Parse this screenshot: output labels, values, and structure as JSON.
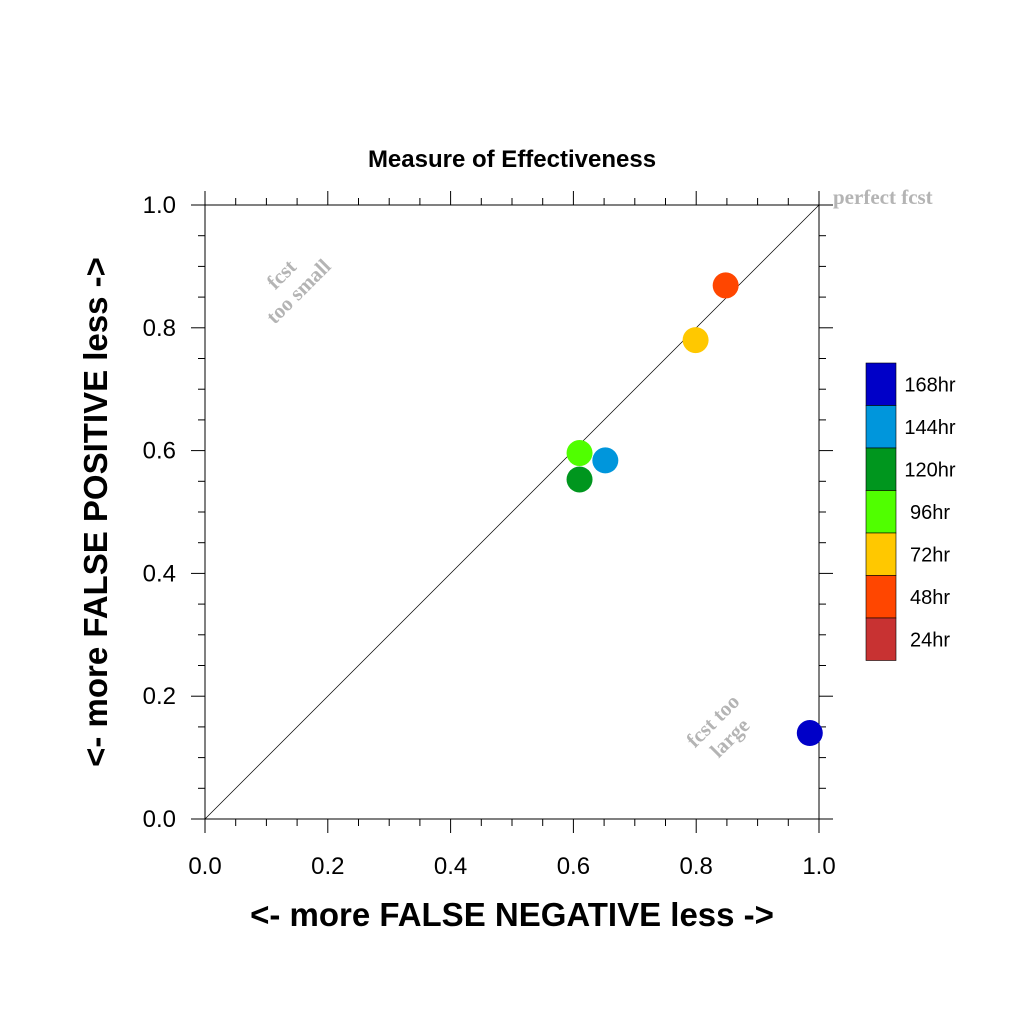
{
  "chart_data": {
    "type": "scatter",
    "title": "Measure of Effectiveness",
    "xlabel": "<- more   FALSE NEGATIVE   less ->",
    "ylabel": "<- more   FALSE POSITIVE   less ->",
    "xlim": [
      0.0,
      1.0
    ],
    "ylim": [
      0.0,
      1.0
    ],
    "xticks": [
      "0.0",
      "0.2",
      "0.4",
      "0.6",
      "0.8",
      "1.0"
    ],
    "yticks": [
      "0.0",
      "0.2",
      "0.4",
      "0.6",
      "0.8",
      "1.0"
    ],
    "grid": false,
    "reference_line": "diagonal y = x",
    "annotations": {
      "perfect": "perfect fcst",
      "too_small_1": "fcst",
      "too_small_2": "too small",
      "too_large_1": "fcst too",
      "too_large_2": "large"
    },
    "legend_position": "right",
    "series": [
      {
        "name": "168hr",
        "color": "#0000c8",
        "x": 0.985,
        "y": 0.14
      },
      {
        "name": "144hr",
        "color": "#0096dc",
        "x": 0.652,
        "y": 0.584
      },
      {
        "name": "120hr",
        "color": "#00961e",
        "x": 0.61,
        "y": 0.553
      },
      {
        "name": "96hr",
        "color": "#50ff00",
        "x": 0.61,
        "y": 0.596
      },
      {
        "name": "72hr",
        "color": "#ffc800",
        "x": 0.799,
        "y": 0.78
      },
      {
        "name": "48hr",
        "color": "#ff4600",
        "x": 0.848,
        "y": 0.869
      },
      {
        "name": "24hr",
        "color": "#c83232",
        "x": null,
        "y": null
      }
    ]
  }
}
